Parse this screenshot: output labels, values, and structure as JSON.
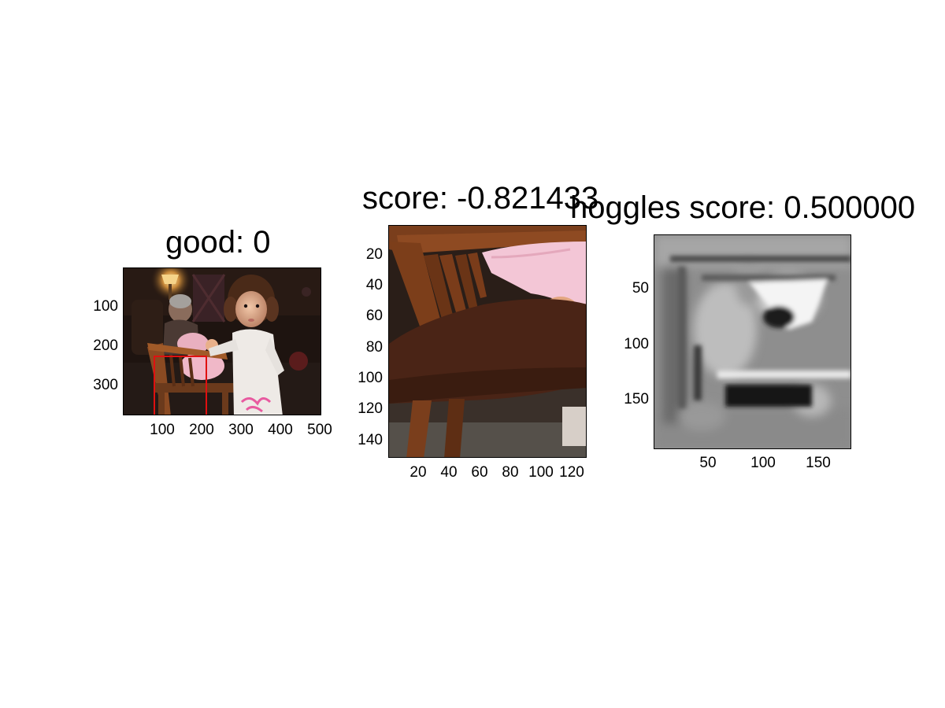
{
  "panels": [
    {
      "title": "good: 0",
      "yticks": [
        "100",
        "200",
        "300"
      ],
      "xticks": [
        "100",
        "200",
        "300",
        "400",
        "500"
      ]
    },
    {
      "title": "score: -0.821433",
      "yticks": [
        "20",
        "40",
        "60",
        "80",
        "100",
        "120",
        "140"
      ],
      "xticks": [
        "20",
        "40",
        "60",
        "80",
        "100",
        "120"
      ]
    },
    {
      "title": "hoggles score: 0.500000",
      "yticks": [
        "50",
        "100",
        "150"
      ],
      "xticks": [
        "50",
        "100",
        "150"
      ]
    }
  ],
  "colors": {
    "detection_box": "#e01010"
  }
}
